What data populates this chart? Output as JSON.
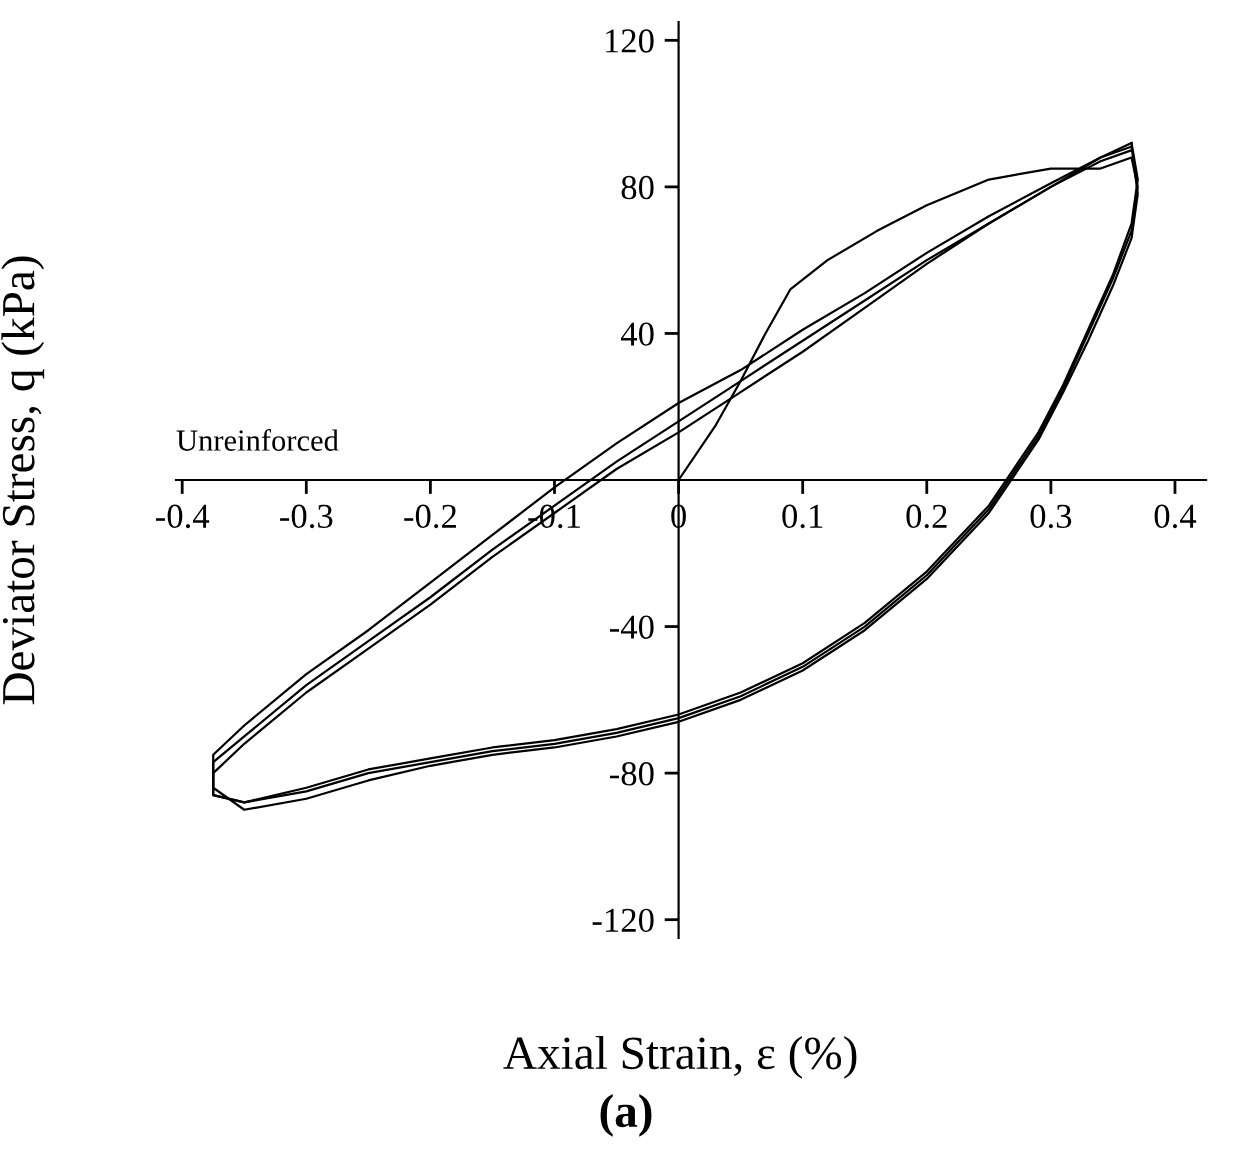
{
  "chart_data": {
    "type": "line",
    "xlabel": "Axial Strain, ε (%)",
    "ylabel": "Deviator Stress, q (kPa)",
    "annotations": [
      "Unreinforced",
      "(a)"
    ],
    "xlim": [
      -0.405,
      0.425
    ],
    "ylim": [
      -125,
      125
    ],
    "xticks": [
      -0.4,
      -0.3,
      -0.2,
      -0.1,
      0,
      0.1,
      0.2,
      0.3,
      0.4
    ],
    "yticks": [
      -120,
      -80,
      -40,
      40,
      80,
      120
    ],
    "grid": false,
    "marker": "none",
    "line_style": "solid",
    "series": [
      {
        "color": "#000000",
        "x": [
          0,
          0.03,
          0.05,
          0.07,
          0.09,
          0.12,
          0.16,
          0.2,
          0.25,
          0.3,
          0.34,
          0.365,
          0.37,
          0.365,
          0.35,
          0.33,
          0.31,
          0.29,
          0.27,
          0.25,
          0.2,
          0.15,
          0.1,
          0.05,
          0,
          -0.05,
          -0.1,
          -0.15,
          -0.2,
          -0.25,
          -0.3,
          -0.35,
          -0.375,
          -0.375,
          -0.35,
          -0.3,
          -0.25,
          -0.2,
          -0.15,
          -0.1,
          -0.05,
          0,
          0.05,
          0.1,
          0.15,
          0.2,
          0.25,
          0.3,
          0.34,
          0.365
        ],
        "values": [
          0,
          15,
          27,
          40,
          52,
          60,
          68,
          75,
          82,
          85,
          85,
          88,
          80,
          68,
          55,
          40,
          25,
          12,
          2,
          -8,
          -26,
          -40,
          -51,
          -59,
          -65,
          -69,
          -72,
          -74,
          -77,
          -80,
          -85,
          -88,
          -86,
          -75,
          -67,
          -53,
          -41,
          -28,
          -15,
          -2,
          10,
          21,
          30,
          41,
          51,
          62,
          72,
          81,
          88,
          91
        ]
      },
      {
        "color": "#000000",
        "x": [
          0.365,
          0.37,
          0.365,
          0.35,
          0.33,
          0.31,
          0.29,
          0.27,
          0.25,
          0.2,
          0.15,
          0.1,
          0.05,
          0,
          -0.05,
          -0.1,
          -0.15,
          -0.2,
          -0.25,
          -0.3,
          -0.35,
          -0.375,
          -0.375,
          -0.35,
          -0.3,
          -0.25,
          -0.2,
          -0.15,
          -0.1,
          -0.05,
          0,
          0.05,
          0.1,
          0.15,
          0.2,
          0.25,
          0.3,
          0.34,
          0.365
        ],
        "values": [
          91,
          78,
          66,
          53,
          38,
          24,
          11,
          1,
          -9,
          -27,
          -41,
          -52,
          -60,
          -66,
          -70,
          -73,
          -75,
          -78,
          -82,
          -87,
          -90,
          -84,
          -80,
          -72,
          -58,
          -46,
          -34,
          -21,
          -9,
          3,
          13,
          24,
          35,
          47,
          59,
          70,
          80,
          88,
          92
        ]
      },
      {
        "color": "#000000",
        "x": [
          0.365,
          0.37,
          0.365,
          0.35,
          0.33,
          0.31,
          0.29,
          0.27,
          0.25,
          0.2,
          0.15,
          0.1,
          0.05,
          0,
          -0.05,
          -0.1,
          -0.15,
          -0.2,
          -0.25,
          -0.3,
          -0.35,
          -0.375,
          -0.375,
          -0.35,
          -0.3,
          -0.25,
          -0.2,
          -0.15,
          -0.1,
          -0.05,
          0,
          0.05,
          0.1,
          0.15,
          0.2,
          0.25,
          0.3,
          0.34,
          0.365
        ],
        "values": [
          92,
          82,
          70,
          56,
          41,
          26,
          13,
          3,
          -7,
          -25,
          -39,
          -50,
          -58,
          -64,
          -68,
          -71,
          -73,
          -76,
          -79,
          -84,
          -88,
          -86,
          -77,
          -70,
          -56,
          -44,
          -32,
          -19,
          -7,
          5,
          16,
          27,
          38,
          49,
          60,
          70,
          80,
          87,
          90
        ]
      }
    ]
  }
}
